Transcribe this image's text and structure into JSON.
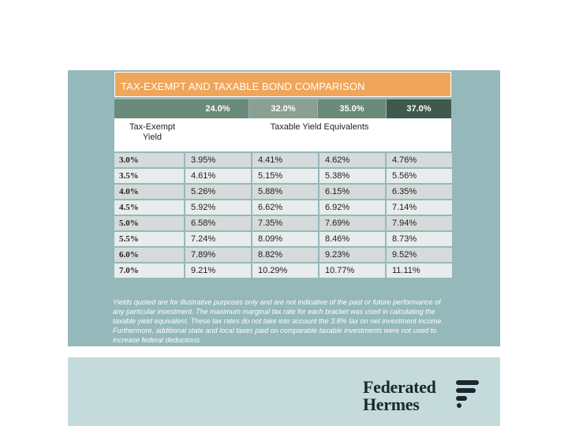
{
  "title": "TAX-EXEMPT AND TAXABLE BOND COMPARISON",
  "header": {
    "brackets": [
      "24.0%",
      "32.0%",
      "35.0%",
      "37.0%"
    ],
    "colors": [
      "#6a8a7a",
      "#8b9f92",
      "#6a8a7a",
      "#3f5a4c"
    ]
  },
  "labels": {
    "tax_exempt": "Tax-Exempt Yield",
    "taxable_equiv": "Taxable Yield Equivalents"
  },
  "rows": [
    {
      "yield": "3.0%",
      "vals": [
        "3.95%",
        "4.41%",
        "4.62%",
        "4.76%"
      ]
    },
    {
      "yield": "3.5%",
      "vals": [
        "4.61%",
        "5.15%",
        "5.38%",
        "5.56%"
      ]
    },
    {
      "yield": "4.0%",
      "vals": [
        "5.26%",
        "5.88%",
        "6.15%",
        "6.35%"
      ]
    },
    {
      "yield": "4.5%",
      "vals": [
        "5.92%",
        "6.62%",
        "6.92%",
        "7.14%"
      ]
    },
    {
      "yield": "5.0%",
      "vals": [
        "6.58%",
        "7.35%",
        "7.69%",
        "7.94%"
      ]
    },
    {
      "yield": "5.5%",
      "vals": [
        "7.24%",
        "8.09%",
        "8.46%",
        "8.73%"
      ]
    },
    {
      "yield": "6.0%",
      "vals": [
        "7.89%",
        "8.82%",
        "9.23%",
        "9.52%"
      ]
    },
    {
      "yield": "7.0%",
      "vals": [
        "9.21%",
        "10.29%",
        "10.77%",
        "11.11%"
      ]
    }
  ],
  "footnote": "Yields quoted are for illustrative purposes only and are not indicative of the past or future performance of any particular investment. The maximum marginal tax rate for each bracket was used in calculating the taxable yield equivalent. These tax rates do not take into account the 3.8% tax on net investment income. Furthermore, additional state and local taxes paid on comparable taxable investments were not used to increase federal deductions.",
  "logo": {
    "line1": "Federated",
    "line2": "Hermes",
    "icon": "federated-hermes-mark-icon"
  },
  "colors": {
    "accent": "#f0a65a",
    "panel": "#95b8bb",
    "footer": "#c5dadb",
    "logo": "#1a2730"
  }
}
